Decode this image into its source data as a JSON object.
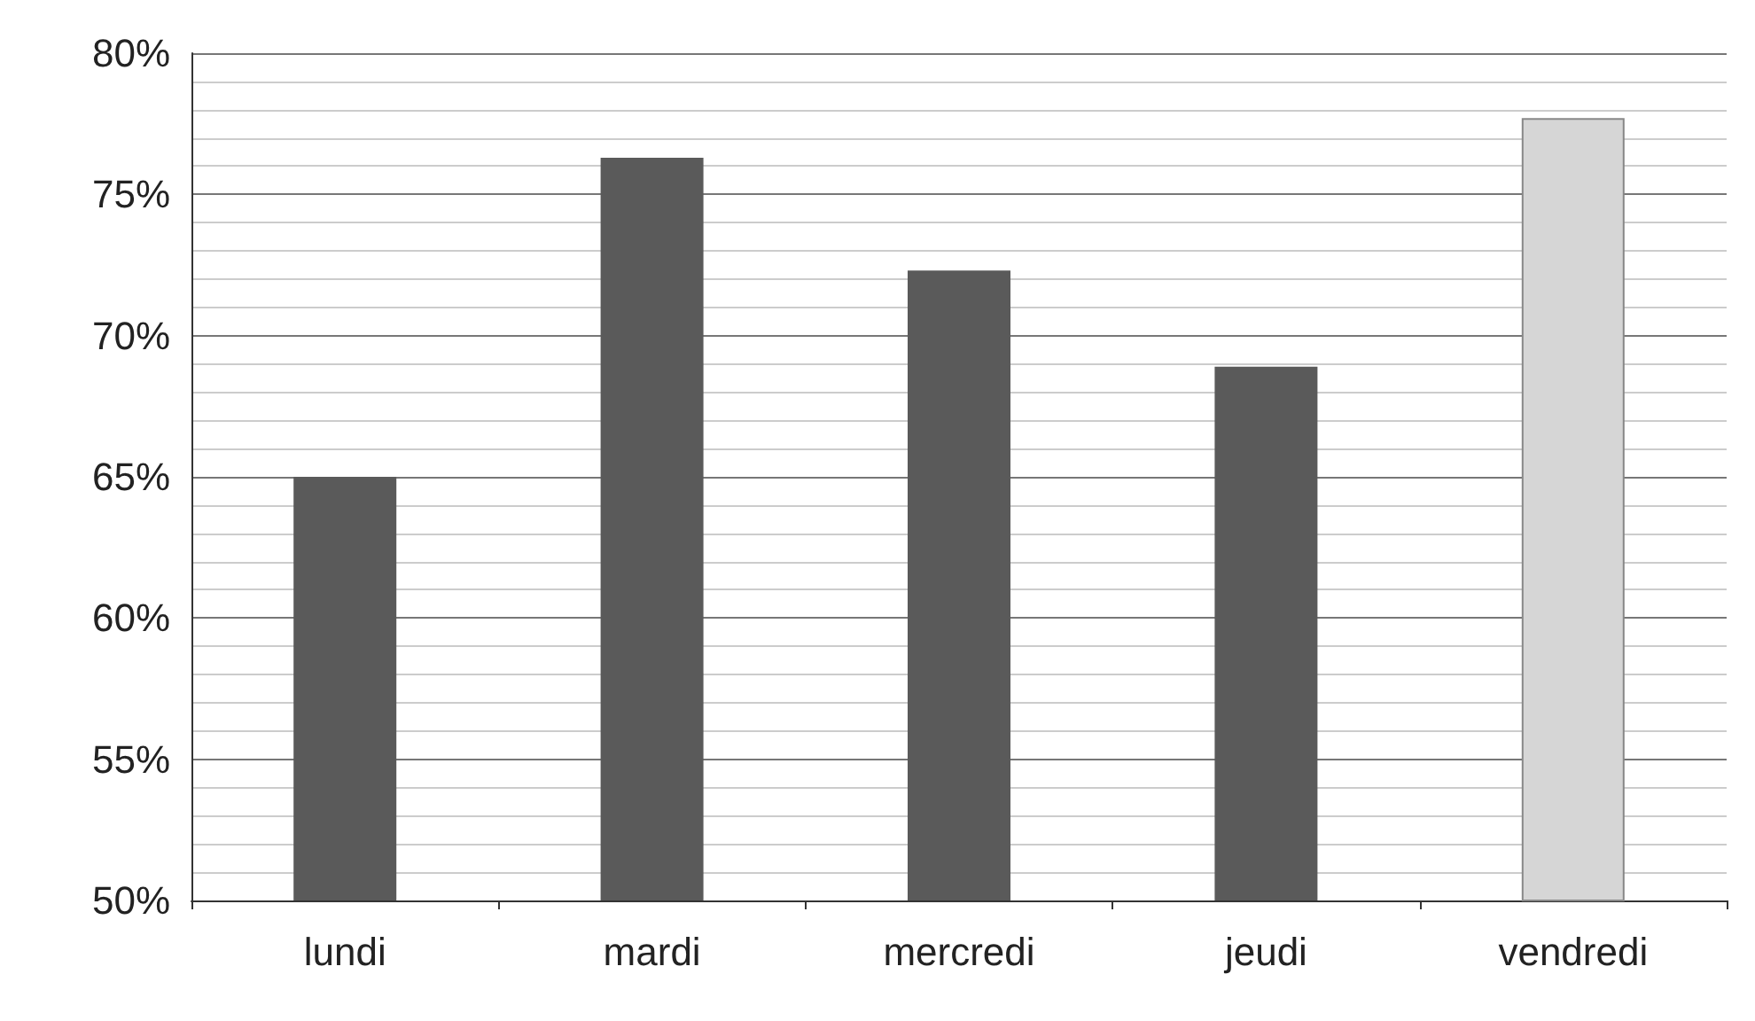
{
  "chart_data": {
    "type": "bar",
    "categories": [
      "lundi",
      "mardi",
      "mercredi",
      "jeudi",
      "vendredi"
    ],
    "values": [
      65,
      76.3,
      72.3,
      68.9,
      77.7
    ],
    "colors": [
      "#5a5a5a",
      "#5a5a5a",
      "#5a5a5a",
      "#5a5a5a",
      "#d6d6d6"
    ],
    "ylim": [
      50,
      80
    ],
    "yticks": [
      {
        "value": 50,
        "label": "50%"
      },
      {
        "value": 55,
        "label": "55%"
      },
      {
        "value": 60,
        "label": "60%"
      },
      {
        "value": 65,
        "label": "65%"
      },
      {
        "value": 70,
        "label": "70%"
      },
      {
        "value": 75,
        "label": "75%"
      },
      {
        "value": 80,
        "label": "80%"
      }
    ],
    "grid": "y"
  }
}
